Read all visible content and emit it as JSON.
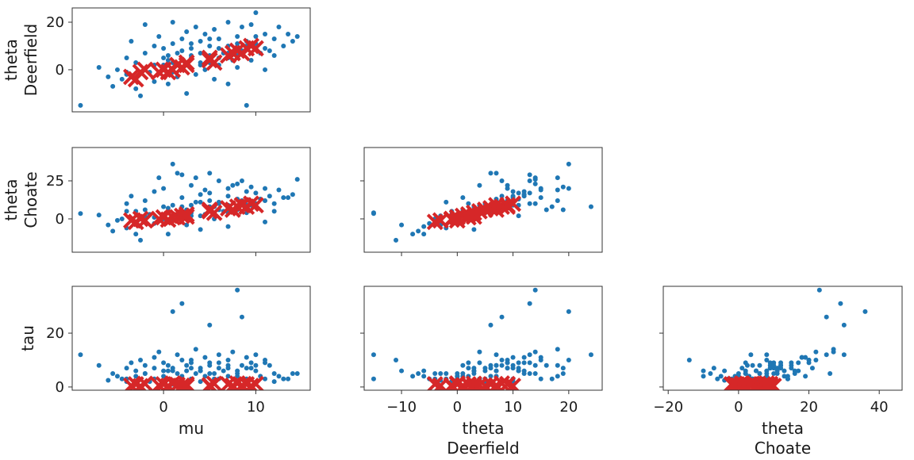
{
  "chart_data": {
    "type": "scatter",
    "layout": "pair-plot",
    "colors": {
      "samples": "#1f77b4",
      "divergences": "#d62728"
    },
    "variables": [
      {
        "key": "mu",
        "label": [
          "mu"
        ],
        "range": [
          -9.9,
          15.9
        ],
        "ticks": [
          0,
          10
        ]
      },
      {
        "key": "thetaD",
        "label": [
          "theta",
          "Deerfield"
        ],
        "range": [
          -16.7,
          26
        ],
        "ticks": [
          -10,
          0,
          10,
          20
        ],
        "yrange": [
          -17.7,
          26
        ],
        "yticks": [
          0,
          20
        ]
      },
      {
        "key": "thetaC",
        "label": [
          "theta",
          "Choate"
        ],
        "range": [
          -21.4,
          46.5
        ],
        "ticks": [
          -20,
          0,
          20,
          40
        ],
        "yrange": [
          -21.9,
          46.9
        ],
        "yticks": [
          0,
          25
        ]
      },
      {
        "key": "tau",
        "label": [
          "tau"
        ],
        "yrange": [
          -1.2,
          37.4
        ],
        "yticks": [
          0,
          20
        ]
      }
    ],
    "panels": [
      {
        "x": "mu",
        "y": "thetaD",
        "row": 0,
        "col": 0
      },
      {
        "x": "mu",
        "y": "thetaC",
        "row": 1,
        "col": 0
      },
      {
        "x": "thetaD",
        "y": "thetaC",
        "row": 1,
        "col": 1
      },
      {
        "x": "mu",
        "y": "tau",
        "row": 2,
        "col": 0
      },
      {
        "x": "thetaD",
        "y": "tau",
        "row": 2,
        "col": 1
      },
      {
        "x": "thetaC",
        "y": "tau",
        "row": 2,
        "col": 2
      }
    ],
    "sample_columns": [
      "mu",
      "thetaD",
      "thetaC",
      "tau"
    ],
    "samples": [
      [
        -9,
        -15,
        3.5,
        12
      ],
      [
        -7,
        1,
        2.5,
        8
      ],
      [
        -6,
        -3,
        -4,
        2.5
      ],
      [
        -5.5,
        -7,
        -8,
        5
      ],
      [
        -5,
        0,
        -1,
        4
      ],
      [
        -4.5,
        -4,
        0,
        3
      ],
      [
        -4,
        5,
        10,
        7
      ],
      [
        -4,
        -2,
        -6,
        3
      ],
      [
        -3.5,
        12,
        15,
        9
      ],
      [
        -3,
        -8,
        -10,
        4
      ],
      [
        -3,
        3,
        5,
        6
      ],
      [
        -2.5,
        -11,
        -14,
        10
      ],
      [
        -2,
        19,
        6,
        5
      ],
      [
        -2,
        7,
        12,
        8
      ],
      [
        -1.5,
        -1,
        3,
        2
      ],
      [
        -1,
        10,
        18,
        11
      ],
      [
        -1,
        -5,
        -3,
        3
      ],
      [
        -0.5,
        14,
        27,
        13
      ],
      [
        0,
        2,
        0,
        4
      ],
      [
        0,
        9,
        20,
        9
      ],
      [
        0.5,
        -6,
        -10,
        6
      ],
      [
        0.5,
        4,
        7,
        3
      ],
      [
        1,
        20,
        36,
        28
      ],
      [
        1,
        11,
        9,
        7
      ],
      [
        1.5,
        -3,
        2,
        5
      ],
      [
        1.5,
        7,
        30,
        12
      ],
      [
        2,
        1,
        14,
        4
      ],
      [
        2,
        13,
        29,
        31
      ],
      [
        2.5,
        -10,
        -4,
        6
      ],
      [
        2.5,
        16,
        6,
        8
      ],
      [
        3,
        5,
        4,
        3
      ],
      [
        3,
        9,
        22,
        10
      ],
      [
        3.5,
        -2,
        11,
        5
      ],
      [
        3.5,
        18,
        27,
        14
      ],
      [
        4,
        3,
        -7,
        7
      ],
      [
        4,
        12,
        16,
        6
      ],
      [
        4.5,
        0,
        3,
        4
      ],
      [
        4.5,
        15,
        19,
        11
      ],
      [
        5,
        6,
        30,
        23
      ],
      [
        5,
        10,
        12,
        8
      ],
      [
        5.5,
        -4,
        0,
        5
      ],
      [
        5.5,
        17,
        8,
        3
      ],
      [
        6,
        2,
        10,
        9
      ],
      [
        6,
        13,
        25,
        12
      ],
      [
        6.5,
        7,
        5,
        6
      ],
      [
        7,
        -6,
        -5,
        4
      ],
      [
        7,
        20,
        20,
        10
      ],
      [
        7,
        10,
        15,
        7
      ],
      [
        7.5,
        4,
        22,
        13
      ],
      [
        8,
        14,
        23,
        36
      ],
      [
        8,
        1,
        6,
        5
      ],
      [
        8.5,
        18,
        12,
        8
      ],
      [
        8.5,
        8,
        25,
        26
      ],
      [
        9,
        -15,
        4,
        3
      ],
      [
        9,
        12,
        18,
        11
      ],
      [
        9.5,
        19,
        21,
        7
      ],
      [
        9.5,
        4,
        9,
        9
      ],
      [
        10,
        24,
        8,
        12
      ],
      [
        10,
        11,
        17,
        6
      ],
      [
        10.5,
        7,
        13,
        4
      ],
      [
        11,
        15,
        20,
        10
      ],
      [
        11,
        0,
        -2,
        3
      ],
      [
        11.5,
        8,
        15,
        8
      ],
      [
        12,
        13,
        10,
        5
      ],
      [
        12,
        6,
        5,
        2
      ],
      [
        12.5,
        18,
        19,
        4
      ],
      [
        13,
        10,
        14,
        3
      ],
      [
        13.5,
        15,
        14,
        3
      ],
      [
        14,
        12,
        16,
        5
      ],
      [
        14.5,
        14,
        26,
        5
      ],
      [
        0.5,
        6,
        4,
        8
      ],
      [
        2,
        8,
        8,
        10
      ],
      [
        3,
        6,
        9,
        7
      ],
      [
        4,
        7,
        11,
        6
      ],
      [
        5,
        3,
        8,
        5
      ],
      [
        6,
        9,
        11,
        7
      ],
      [
        7,
        7,
        9,
        8
      ],
      [
        8,
        11,
        13,
        6
      ],
      [
        9,
        9,
        12,
        7
      ],
      [
        1,
        3,
        2,
        6
      ],
      [
        -1,
        2,
        1,
        7
      ],
      [
        -2,
        0,
        2,
        5
      ],
      [
        10,
        14,
        10,
        8
      ],
      [
        11,
        9,
        12,
        9
      ],
      [
        3,
        11,
        2,
        9
      ],
      [
        6,
        5,
        6,
        3
      ],
      [
        8,
        6,
        8,
        4
      ],
      [
        5,
        13,
        17,
        9
      ],
      [
        2,
        4,
        5,
        3
      ],
      [
        0,
        5,
        8,
        6
      ],
      [
        -4,
        -1,
        5,
        2
      ],
      [
        1,
        -1,
        0,
        1
      ],
      [
        4,
        2,
        2,
        2
      ],
      [
        7,
        5,
        4,
        1.5
      ],
      [
        9,
        10,
        9,
        2
      ]
    ],
    "divergences": [
      [
        -3.5,
        -3,
        -1,
        0.5
      ],
      [
        -3,
        -4,
        -2,
        1
      ],
      [
        -2.5,
        -1,
        0,
        0.3
      ],
      [
        -2,
        0,
        -1,
        1.2
      ],
      [
        -0.5,
        -1,
        0,
        0.6
      ],
      [
        0,
        0,
        1,
        1
      ],
      [
        0.5,
        -1,
        -0.5,
        0.4
      ],
      [
        1,
        0,
        1,
        1.3
      ],
      [
        1.5,
        2,
        1,
        0.8
      ],
      [
        2,
        1,
        2,
        0.5
      ],
      [
        2.5,
        2,
        3,
        1
      ],
      [
        2.5,
        3,
        1.5,
        0.3
      ],
      [
        5,
        4,
        5,
        0.7
      ],
      [
        5.5,
        3,
        4,
        1.2
      ],
      [
        5,
        5,
        6,
        0.4
      ],
      [
        7,
        6,
        7,
        1
      ],
      [
        7.5,
        7,
        6,
        0.5
      ],
      [
        8,
        8,
        8,
        1.3
      ],
      [
        8.5,
        7,
        9,
        0.6
      ],
      [
        9,
        9,
        8,
        1
      ],
      [
        9.5,
        10,
        10,
        0.4
      ],
      [
        10,
        9,
        9,
        1.1
      ]
    ]
  }
}
